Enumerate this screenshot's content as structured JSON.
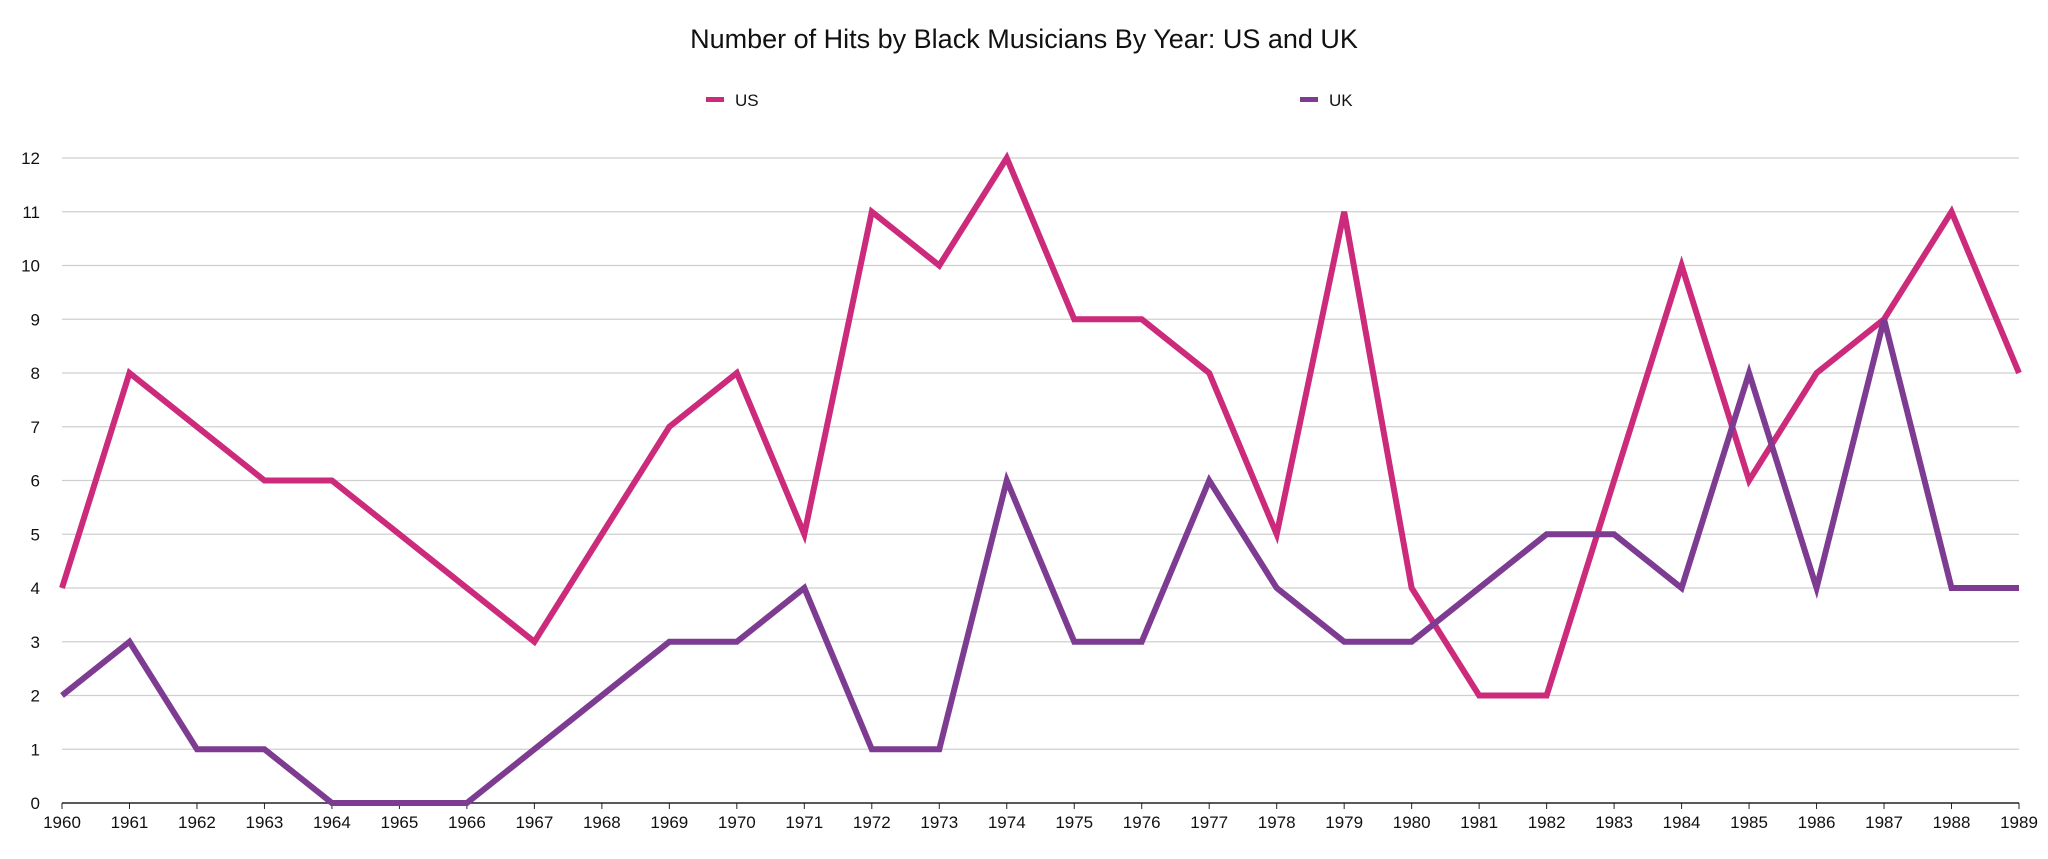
{
  "chart_data": {
    "type": "line",
    "title": "Number of Hits by Black Musicians By Year: US and UK",
    "xlabel": "",
    "ylabel": "",
    "x": [
      1960,
      1961,
      1962,
      1963,
      1964,
      1965,
      1966,
      1967,
      1968,
      1969,
      1970,
      1971,
      1972,
      1973,
      1974,
      1975,
      1976,
      1977,
      1978,
      1979,
      1980,
      1981,
      1982,
      1983,
      1984,
      1985,
      1986,
      1987,
      1988,
      1989
    ],
    "ylim": [
      0,
      12
    ],
    "yticks": [
      0,
      1,
      2,
      3,
      4,
      5,
      6,
      7,
      8,
      9,
      10,
      11,
      12
    ],
    "grid": true,
    "legend_position": "top",
    "series": [
      {
        "name": "US",
        "color": "#cc2a7b",
        "values": [
          4,
          8,
          7,
          6,
          6,
          5,
          4,
          3,
          5,
          7,
          8,
          5,
          11,
          10,
          12,
          9,
          9,
          8,
          5,
          11,
          4,
          2,
          2,
          6,
          10,
          6,
          8,
          9,
          11,
          8
        ]
      },
      {
        "name": "UK",
        "color": "#7d3c92",
        "values": [
          2,
          3,
          1,
          1,
          0,
          0,
          0,
          1,
          2,
          3,
          3,
          4,
          1,
          1,
          6,
          3,
          3,
          6,
          4,
          3,
          3,
          4,
          5,
          5,
          4,
          8,
          4,
          9,
          4,
          4
        ]
      }
    ]
  }
}
